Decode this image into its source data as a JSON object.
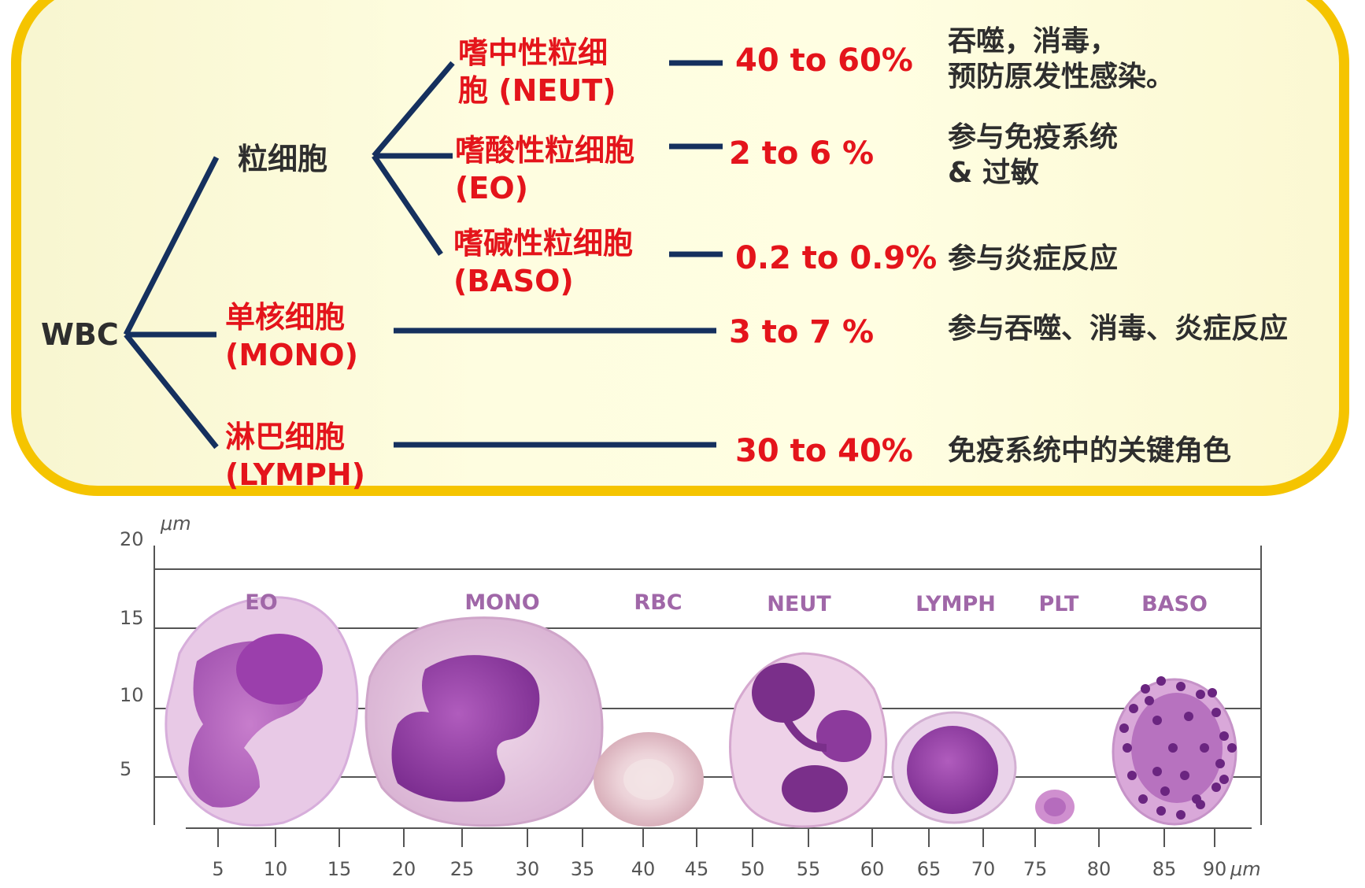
{
  "tree": {
    "root": "WBC",
    "granulocyte": "粒细胞",
    "neut": {
      "label": [
        "嗜中性粒细",
        "胞 (NEUT)"
      ],
      "range": "40 to 60%",
      "function": [
        "吞噬，消毒，",
        "预防原发性感染。"
      ]
    },
    "eo": {
      "label": [
        "嗜酸性粒细胞",
        "(EO)"
      ],
      "range": "2 to 6 %",
      "function": [
        "参与免疫系统",
        "& 过敏"
      ]
    },
    "baso": {
      "label": [
        "嗜碱性粒细胞",
        "(BASO)"
      ],
      "range": "0.2 to 0.9%",
      "function": [
        "参与炎症反应"
      ]
    },
    "mono": {
      "label": [
        "单核细胞",
        "(MONO)"
      ],
      "range": "3 to 7 %",
      "function": [
        "参与吞噬、消毒、炎症反应"
      ]
    },
    "lymph": {
      "label": [
        "淋巴细胞",
        "(LYMPH)"
      ],
      "range": "30 to 40%",
      "function": [
        "免疫系统中的关键角色"
      ]
    }
  },
  "scale": {
    "y_unit": "μm",
    "x_unit": "μm",
    "y_ticks": [
      "20",
      "15",
      "10",
      "5"
    ],
    "x_ticks": [
      "5",
      "10",
      "15",
      "20",
      "25",
      "30",
      "35",
      "40",
      "45",
      "50",
      "55",
      "60",
      "65",
      "70",
      "75",
      "80",
      "85",
      "90"
    ],
    "cells": [
      "EO",
      "MONO",
      "RBC",
      "NEUT",
      "LYMPH",
      "PLT",
      "BASO"
    ]
  },
  "colors": {
    "border": "#f5c400",
    "line": "#15305e",
    "red": "#e4141b",
    "dark": "#2e2e2e",
    "purple": "#a067a8"
  }
}
